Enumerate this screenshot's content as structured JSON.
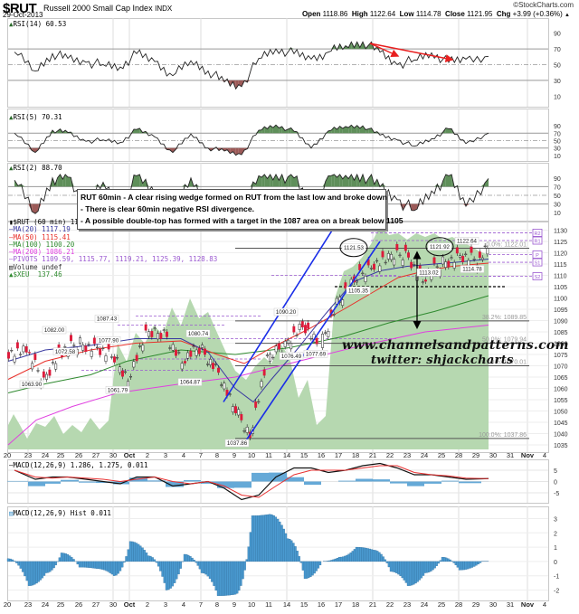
{
  "header": {
    "symbol": "$RUT",
    "name": "Russell 2000 Small Cap Index",
    "exchange": "INDX",
    "date": "29-Oct-2013",
    "credit": "©StockCharts.com",
    "open_label": "Open",
    "open": "1118.86",
    "high_label": "High",
    "high": "1122.64",
    "low_label": "Low",
    "low": "1114.78",
    "close_label": "Close",
    "close": "1121.95",
    "chg_label": "Chg",
    "chg": "+3.99 (+0.36%)",
    "chg_icon": "up-triangle-icon"
  },
  "annotation": {
    "line1": "RUT 60min - A clear rising wedge formed on RUT from the last low and broke down",
    "line2": "- There is clear 60min negative RSI divergence.",
    "line3": "- A possible double-top has formed with a target in the 1087 area on a break below 1105"
  },
  "watermark": {
    "site": "www.channelsandpatterns.com",
    "twitter": "twitter: shjackcharts"
  },
  "colors": {
    "ma20": "#3a3aa0",
    "ma50": "#e8302a",
    "ma100": "#2f8a2f",
    "ma200": "#e040e0",
    "pivots": "#9b59d0",
    "xeu_fill": "#b6d8b0",
    "rsi_over": "#5f8f5a",
    "rsi_under": "#9c5a58",
    "wedge": "#1a2ee8",
    "divergence_arrow": "#e82020",
    "macd_line": "#111111",
    "signal_line": "#e83030",
    "hist": "#4a9ad0",
    "up_candle": "#ffffff",
    "down_candle": "#dd1a3a"
  },
  "chart_data": [
    {
      "type": "line",
      "title": "RSI(14) 60.53",
      "ylim": [
        0,
        100
      ],
      "yticks": [
        10,
        30,
        50,
        70,
        90
      ],
      "x": [
        "Sep 20",
        "Sep 23",
        "Sep 24",
        "Sep 25",
        "Sep 26",
        "Sep 27",
        "Sep 30",
        "Oct 1",
        "Oct 2",
        "Oct 3",
        "Oct 4",
        "Oct 7",
        "Oct 8",
        "Oct 9",
        "Oct 10",
        "Oct 11",
        "Oct 14",
        "Oct 15",
        "Oct 16",
        "Oct 17",
        "Oct 18",
        "Oct 21",
        "Oct 22",
        "Oct 23",
        "Oct 24",
        "Oct 25",
        "Oct 28",
        "Oct 29"
      ],
      "values": [
        66,
        42,
        64,
        58,
        53,
        50,
        47,
        64,
        54,
        36,
        55,
        42,
        28,
        22,
        58,
        70,
        64,
        57,
        66,
        74,
        79,
        66,
        50,
        56,
        65,
        53,
        57,
        60.53
      ],
      "annotations": [
        "negative divergence arrows from ~Oct 21 peak (80) down to ~Oct 21 70 and Oct 25 67"
      ]
    },
    {
      "type": "line",
      "title": "RSI(5) 70.31",
      "ylim": [
        0,
        100
      ],
      "yticks": [
        10,
        30,
        50,
        70,
        90
      ],
      "x": [
        "Sep 20",
        "Sep 23",
        "Sep 24",
        "Sep 25",
        "Sep 26",
        "Sep 27",
        "Sep 30",
        "Oct 1",
        "Oct 2",
        "Oct 3",
        "Oct 4",
        "Oct 7",
        "Oct 8",
        "Oct 9",
        "Oct 10",
        "Oct 11",
        "Oct 14",
        "Oct 15",
        "Oct 16",
        "Oct 17",
        "Oct 18",
        "Oct 21",
        "Oct 22",
        "Oct 23",
        "Oct 24",
        "Oct 25",
        "Oct 28",
        "Oct 29"
      ],
      "values": [
        70,
        18,
        78,
        72,
        48,
        52,
        45,
        80,
        60,
        18,
        68,
        30,
        22,
        12,
        78,
        92,
        75,
        30,
        76,
        88,
        90,
        65,
        52,
        35,
        55,
        82,
        42,
        70.31
      ]
    },
    {
      "type": "line",
      "title": "RSI(2) 88.70",
      "ylim": [
        0,
        100
      ],
      "yticks": [
        10,
        30,
        50,
        70,
        90
      ],
      "x": [
        "Sep 20",
        "Sep 23",
        "Sep 24",
        "Sep 25",
        "Sep 26",
        "Sep 27",
        "Sep 30",
        "Oct 1",
        "Oct 2",
        "Oct 3",
        "Oct 4",
        "Oct 7",
        "Oct 8",
        "Oct 9",
        "Oct 10",
        "Oct 11",
        "Oct 14",
        "Oct 15",
        "Oct 16",
        "Oct 17",
        "Oct 18",
        "Oct 21",
        "Oct 22",
        "Oct 23",
        "Oct 24",
        "Oct 25",
        "Oct 28",
        "Oct 29"
      ],
      "values": [
        85,
        8,
        90,
        92,
        15,
        80,
        10,
        95,
        55,
        8,
        90,
        20,
        10,
        5,
        95,
        98,
        90,
        20,
        95,
        96,
        98,
        70,
        40,
        15,
        60,
        95,
        25,
        88.7
      ]
    },
    {
      "type": "candlestick",
      "title": "$RUT (60 min) 1121.95",
      "ylim": [
        1033,
        1133
      ],
      "yticks": [
        1035,
        1040,
        1045,
        1050,
        1055,
        1060,
        1065,
        1070,
        1075,
        1080,
        1085,
        1090,
        1095,
        1100,
        1105,
        1110,
        1115,
        1120,
        1125,
        1130
      ],
      "x_labels": [
        "20",
        "23",
        "24",
        "25",
        "26",
        "27",
        "30",
        "Oct",
        "2",
        "3",
        "4",
        "7",
        "8",
        "9",
        "10",
        "11",
        "14",
        "15",
        "16",
        "17",
        "18",
        "21",
        "22",
        "23",
        "24",
        "25",
        "28",
        "29",
        "30",
        "31",
        "Nov",
        "4"
      ],
      "legend": [
        {
          "name": "MA(20)",
          "value": "1117.19"
        },
        {
          "name": "MA(50)",
          "value": "1115.41"
        },
        {
          "name": "MA(100)",
          "value": "1100.20"
        },
        {
          "name": "MA(200)",
          "value": "1086.21"
        },
        {
          "name": "PIVOTS",
          "value": "1109.59, 1115.77, 1119.21, 1125.39, 1128.83"
        },
        {
          "name": "Volume",
          "value": "undef"
        },
        {
          "name": "$XEU",
          "value": "137.46"
        }
      ],
      "price_points": [
        {
          "x": "Sep 20",
          "close": 1076
        },
        {
          "x": "Sep 23",
          "close": 1064
        },
        {
          "x": "Sep 24",
          "close": 1075
        },
        {
          "x": "Sep 25",
          "close": 1080
        },
        {
          "x": "Sep 26",
          "close": 1078
        },
        {
          "x": "Sep 27",
          "close": 1074
        },
        {
          "x": "Sep 30",
          "close": 1065
        },
        {
          "x": "Oct 1",
          "close": 1083
        },
        {
          "x": "Oct 2",
          "close": 1085
        },
        {
          "x": "Oct 3",
          "close": 1072
        },
        {
          "x": "Oct 4",
          "close": 1078
        },
        {
          "x": "Oct 7",
          "close": 1069
        },
        {
          "x": "Oct 8",
          "close": 1052
        },
        {
          "x": "Oct 9",
          "close": 1040
        },
        {
          "x": "Oct 10",
          "close": 1072
        },
        {
          "x": "Oct 11",
          "close": 1080
        },
        {
          "x": "Oct 14",
          "close": 1088
        },
        {
          "x": "Oct 15",
          "close": 1078
        },
        {
          "x": "Oct 16",
          "close": 1098
        },
        {
          "x": "Oct 17",
          "close": 1107
        },
        {
          "x": "Oct 18",
          "close": 1115
        },
        {
          "x": "Oct 21",
          "close": 1117
        },
        {
          "x": "Oct 22",
          "close": 1120
        },
        {
          "x": "Oct 23",
          "close": 1108
        },
        {
          "x": "Oct 24",
          "close": 1115
        },
        {
          "x": "Oct 25",
          "close": 1118
        },
        {
          "x": "Oct 28",
          "close": 1117
        },
        {
          "x": "Oct 29",
          "close": 1121.95
        }
      ],
      "point_labels": [
        {
          "label": "1063.90",
          "value": 1063.9
        },
        {
          "label": "1072.58",
          "value": 1072.58
        },
        {
          "label": "1082.00",
          "value": 1082.0
        },
        {
          "label": "1061.79",
          "value": 1061.79
        },
        {
          "label": "1077.90",
          "value": 1077.9
        },
        {
          "label": "1087.43",
          "value": 1087.43
        },
        {
          "label": "1064.87",
          "value": 1064.87
        },
        {
          "label": "1080.74",
          "value": 1080.74
        },
        {
          "label": "1037.86",
          "value": 1037.86
        },
        {
          "label": "1076.49",
          "value": 1076.49
        },
        {
          "label": "1090.20",
          "value": 1090.2
        },
        {
          "label": "1077.69",
          "value": 1077.69
        },
        {
          "label": "1121.53",
          "value": 1121.53
        },
        {
          "label": "1105.35",
          "value": 1105.35
        },
        {
          "label": "1121.92",
          "value": 1121.92
        },
        {
          "label": "1113.02",
          "value": 1113.02
        },
        {
          "label": "1122.64",
          "value": 1122.64
        },
        {
          "label": "1114.78",
          "value": 1114.78
        }
      ],
      "fib_levels": [
        {
          "label": "0.0%: 1122.01",
          "value": 1122.01
        },
        {
          "label": "38.2%: 1089.85",
          "value": 1089.85
        },
        {
          "label": "50.0%: 1079.94",
          "value": 1079.94
        },
        {
          "label": "61.8%: 1070.01",
          "value": 1070.01
        },
        {
          "label": "100.0%: 1037.86",
          "value": 1037.86
        }
      ],
      "pivot_tags": [
        {
          "label": "R2",
          "value": 1128.83
        },
        {
          "label": "R1",
          "value": 1125.39
        },
        {
          "label": "P",
          "value": 1119.21
        },
        {
          "label": "S1",
          "value": 1115.77
        },
        {
          "label": "S2",
          "value": 1109.59
        }
      ],
      "support_line": 1105,
      "double_top_target": 1087
    },
    {
      "type": "line",
      "title": "MACD(12,26,9) 1.286, 1.275, 0.011",
      "ylim": [
        -9,
        9
      ],
      "yticks": [
        -5,
        0,
        5
      ],
      "series": [
        {
          "name": "MACD",
          "values": [
            5,
            1,
            2,
            2,
            1,
            0,
            -1,
            2,
            2,
            -2,
            -1,
            0,
            -3,
            -8,
            -6,
            2,
            6,
            6,
            4,
            5,
            7,
            8,
            6,
            3,
            3,
            2,
            1,
            1.286
          ]
        },
        {
          "name": "Signal",
          "values": [
            5,
            2,
            1.5,
            2,
            1.5,
            1,
            0,
            1,
            2,
            0,
            -1,
            0,
            -2,
            -6,
            -7,
            -2,
            3,
            5,
            5,
            5,
            6,
            7,
            7,
            4,
            3,
            2.5,
            1.5,
            1.275
          ]
        }
      ]
    },
    {
      "type": "bar",
      "title": "MACD(12,26,9) Hist 0.011",
      "ylim": [
        -2.6,
        3.6
      ],
      "yticks": [
        -2,
        -1,
        0,
        1,
        2,
        3
      ],
      "x": [
        "Sep 20",
        "Sep 23",
        "Sep 24",
        "Sep 25",
        "Sep 26",
        "Sep 27",
        "Sep 30",
        "Oct 1",
        "Oct 2",
        "Oct 3",
        "Oct 4",
        "Oct 7",
        "Oct 8",
        "Oct 9",
        "Oct 10",
        "Oct 11",
        "Oct 14",
        "Oct 15",
        "Oct 16",
        "Oct 17",
        "Oct 18",
        "Oct 21",
        "Oct 22",
        "Oct 23",
        "Oct 24",
        "Oct 25",
        "Oct 28",
        "Oct 29"
      ],
      "values": [
        0.2,
        -1.7,
        -0.8,
        0.6,
        -0.4,
        -0.5,
        -1.0,
        1.4,
        0.4,
        -2.0,
        0.5,
        -0.8,
        -2.4,
        -2.3,
        3.2,
        3.3,
        1.6,
        -1.2,
        0.0,
        0.3,
        1.0,
        0.8,
        -0.7,
        -1.7,
        -0.8,
        0.3,
        -0.6,
        0.011
      ]
    }
  ],
  "xaxis": {
    "labels": [
      "20",
      "23",
      "24",
      "25",
      "26",
      "27",
      "30",
      "Oct",
      "2",
      "3",
      "4",
      "7",
      "8",
      "9",
      "10",
      "11",
      "14",
      "15",
      "16",
      "17",
      "18",
      "21",
      "22",
      "23",
      "24",
      "25",
      "28",
      "29",
      "30",
      "31",
      "Nov",
      "4"
    ],
    "bold": [
      "Oct",
      "Nov"
    ]
  }
}
